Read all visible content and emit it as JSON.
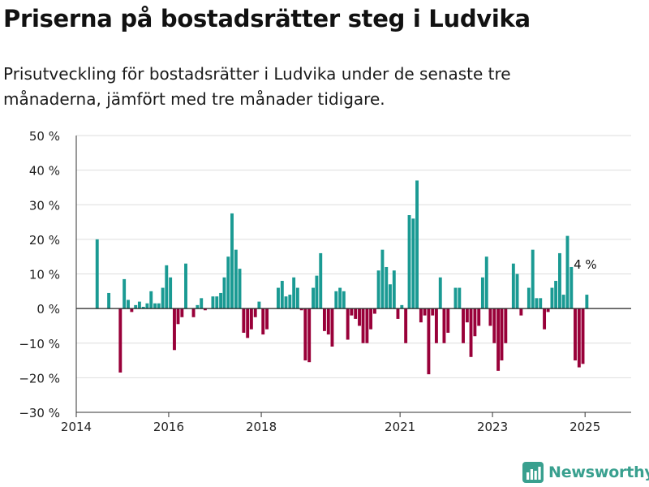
{
  "title": "Priserna på bostadsrätter steg i Ludvika",
  "subtitle": "Prisutveckling för bostadsrätter i Ludvika under de senaste tre månaderna, jämfört med tre månader tidigare.",
  "brand": {
    "name": "Newsworthy",
    "color": "#39a08f"
  },
  "colors": {
    "positive": "#1a9a93",
    "negative": "#990039",
    "grid": "#dddddd",
    "axis": "#333333"
  },
  "chart_data": {
    "type": "bar",
    "ylim": [
      -30,
      50
    ],
    "yticks": [
      -30,
      -20,
      -10,
      0,
      10,
      20,
      30,
      40,
      50
    ],
    "ytick_labels": [
      "−30 %",
      "−20 %",
      "−10 %",
      "0 %",
      "10 %",
      "20 %",
      "30 %",
      "40 %",
      "50 %"
    ],
    "xlim": [
      "2014-01-01",
      "2025-12-31"
    ],
    "xticks": [
      {
        "date": "2014-01-01",
        "label": "2014"
      },
      {
        "date": "2016-01-01",
        "label": "2016"
      },
      {
        "date": "2018-01-01",
        "label": "2018"
      },
      {
        "date": "2021-01-01",
        "label": "2021"
      },
      {
        "date": "2023-01-01",
        "label": "2023"
      },
      {
        "date": "2025-01-01",
        "label": "2025"
      }
    ],
    "annotation": {
      "date": "2025-01",
      "value": 4,
      "label": "4 %"
    },
    "x": [
      "2014-06",
      "2014-07",
      "2014-08",
      "2014-09",
      "2014-10",
      "2014-11",
      "2014-12",
      "2015-01",
      "2015-02",
      "2015-03",
      "2015-04",
      "2015-05",
      "2015-06",
      "2015-07",
      "2015-08",
      "2015-09",
      "2015-10",
      "2015-11",
      "2015-12",
      "2016-01",
      "2016-02",
      "2016-03",
      "2016-04",
      "2016-05",
      "2016-06",
      "2016-07",
      "2016-08",
      "2016-09",
      "2016-10",
      "2016-11",
      "2016-12",
      "2017-01",
      "2017-02",
      "2017-03",
      "2017-04",
      "2017-05",
      "2017-06",
      "2017-07",
      "2017-08",
      "2017-09",
      "2017-10",
      "2017-11",
      "2017-12",
      "2018-01",
      "2018-02",
      "2018-03",
      "2018-04",
      "2018-05",
      "2018-06",
      "2018-07",
      "2018-08",
      "2018-09",
      "2018-10",
      "2018-11",
      "2018-12",
      "2019-01",
      "2019-02",
      "2019-03",
      "2019-04",
      "2019-05",
      "2019-06",
      "2019-07",
      "2019-08",
      "2019-09",
      "2019-10",
      "2019-11",
      "2019-12",
      "2020-01",
      "2020-02",
      "2020-03",
      "2020-04",
      "2020-05",
      "2020-06",
      "2020-07",
      "2020-08",
      "2020-09",
      "2020-10",
      "2020-11",
      "2020-12",
      "2021-01",
      "2021-02",
      "2021-03",
      "2021-04",
      "2021-05",
      "2021-06",
      "2021-07",
      "2021-08",
      "2021-09",
      "2021-10",
      "2021-11",
      "2021-12",
      "2022-01",
      "2022-02",
      "2022-03",
      "2022-04",
      "2022-05",
      "2022-06",
      "2022-07",
      "2022-08",
      "2022-09",
      "2022-10",
      "2022-11",
      "2022-12",
      "2023-01",
      "2023-02",
      "2023-03",
      "2023-04",
      "2023-05",
      "2023-06",
      "2023-07",
      "2023-08",
      "2023-09",
      "2023-10",
      "2023-11",
      "2023-12",
      "2024-01",
      "2024-02",
      "2024-03",
      "2024-04",
      "2024-05",
      "2024-06",
      "2024-07",
      "2024-08",
      "2024-09",
      "2024-10",
      "2024-11",
      "2024-12",
      "2025-01"
    ],
    "values": [
      20,
      0,
      0,
      4.5,
      0,
      0,
      -18.5,
      8.5,
      2.5,
      -1,
      1,
      2,
      0.5,
      1.5,
      5,
      1.5,
      1.5,
      6,
      12.5,
      9,
      -12,
      -4.5,
      -2.5,
      13,
      0,
      -2.5,
      1,
      3,
      -0.5,
      0,
      3.5,
      3.5,
      4.5,
      9,
      15,
      27.5,
      17,
      11.5,
      -7,
      -8.5,
      -6,
      -2.5,
      2,
      -7.5,
      -6,
      0,
      0,
      6,
      8,
      3.5,
      4,
      9,
      6,
      -0.5,
      -15,
      -15.5,
      6,
      9.5,
      16,
      -6.5,
      -7.5,
      -11,
      5,
      6,
      5,
      -9,
      -2,
      -3,
      -5,
      -10,
      -10,
      -6,
      -1.5,
      11,
      17,
      12,
      7,
      11,
      -3,
      1,
      -10,
      27,
      26,
      37,
      -4,
      -2,
      -19,
      -2,
      -10,
      9,
      -10,
      -7,
      0,
      6,
      6,
      -10,
      -4,
      -14,
      -8,
      -5,
      9,
      15,
      -5,
      -10,
      -18,
      -15,
      -10,
      0,
      13,
      10,
      -2,
      0,
      6,
      17,
      3,
      3,
      -6,
      -1,
      6,
      8,
      16,
      4,
      21,
      12,
      -15,
      -17,
      -16,
      4
    ]
  }
}
